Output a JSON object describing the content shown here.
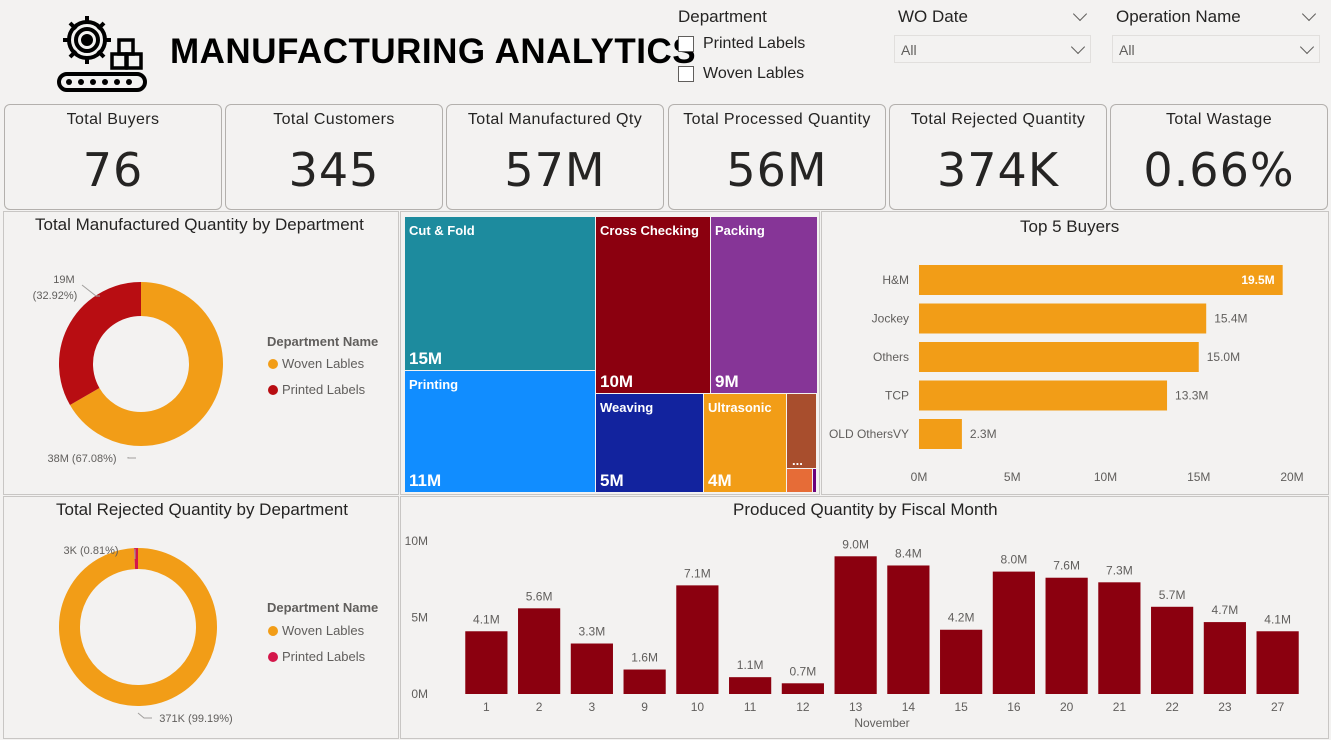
{
  "header": {
    "title": "MANUFACTURING ANALYTICS",
    "logo_icon": "gear-conveyor-icon"
  },
  "slicers": {
    "department": {
      "title": "Department",
      "options": [
        {
          "label": "Printed Labels",
          "checked": false
        },
        {
          "label": "Woven Lables",
          "checked": false
        }
      ]
    },
    "wo_date": {
      "title": "WO Date",
      "value": "All"
    },
    "operation_name": {
      "title": "Operation Name",
      "value": "All"
    }
  },
  "kpis": [
    {
      "label": "Total Buyers",
      "value": "76"
    },
    {
      "label": "Total Customers",
      "value": "345"
    },
    {
      "label": "Total Manufactured Qty",
      "value": "57M"
    },
    {
      "label": "Total Processed Quantity",
      "value": "56M"
    },
    {
      "label": "Total Rejected Quantity",
      "value": "374K"
    },
    {
      "label": "Total Wastage",
      "value": "0.66%"
    }
  ],
  "chart_data": [
    {
      "type": "pie",
      "variant": "donut",
      "title": "Total Manufactured Quantity by Department",
      "legend_title": "Department Name",
      "slices": [
        {
          "name": "Woven Lables",
          "value": 38,
          "unit": "M",
          "label": "38M (67.08%)",
          "color": "#f29d17"
        },
        {
          "name": "Printed Labels",
          "value": 19,
          "unit": "M",
          "label": "19M (32.92%)",
          "color": "#b80d12"
        }
      ]
    },
    {
      "type": "treemap",
      "title": "",
      "cells": [
        {
          "name": "Cut & Fold",
          "label": "15M",
          "value": 15,
          "color": "#1d8b9e"
        },
        {
          "name": "Printing",
          "label": "11M",
          "value": 11,
          "color": "#118dff"
        },
        {
          "name": "Cross Checking",
          "label": "10M",
          "value": 10,
          "color": "#8b000f"
        },
        {
          "name": "Packing",
          "label": "9M",
          "value": 9,
          "color": "#863597"
        },
        {
          "name": "Weaving",
          "label": "5M",
          "value": 5,
          "color": "#12239e"
        },
        {
          "name": "Ultrasonic",
          "label": "4M",
          "value": 4,
          "color": "#f29d17"
        },
        {
          "name": "...",
          "label": "",
          "value": 1.5,
          "color": "#a84e2d"
        },
        {
          "name": "",
          "label": "",
          "value": 0.5,
          "color": "#e66c37"
        }
      ]
    },
    {
      "type": "bar",
      "orientation": "horizontal",
      "title": "Top 5 Buyers",
      "categories": [
        "H&M",
        "Jockey",
        "Others",
        "TCP",
        "OLD OthersVY"
      ],
      "values": [
        19.5,
        15.4,
        15.0,
        13.3,
        2.3
      ],
      "data_labels": [
        "19.5M",
        "15.4M",
        "15.0M",
        "13.3M",
        "2.3M"
      ],
      "xlim": [
        0,
        20
      ],
      "xticks": [
        "0M",
        "5M",
        "10M",
        "15M",
        "20M"
      ],
      "color": "#f29d17"
    },
    {
      "type": "pie",
      "variant": "donut",
      "title": "Total Rejected Quantity by Department",
      "legend_title": "Department Name",
      "slices": [
        {
          "name": "Woven Lables",
          "value": 371,
          "unit": "K",
          "label": "371K (99.19%)",
          "color": "#f29d17"
        },
        {
          "name": "Printed Labels",
          "value": 3,
          "unit": "K",
          "label": "3K (0.81%)",
          "color": "#d4164a"
        }
      ]
    },
    {
      "type": "bar",
      "title": "Produced Quantity by Fiscal Month",
      "xlabel": "November",
      "categories": [
        "1",
        "2",
        "3",
        "9",
        "10",
        "11",
        "12",
        "13",
        "14",
        "15",
        "16",
        "20",
        "21",
        "22",
        "23",
        "27"
      ],
      "values": [
        4.1,
        5.6,
        3.3,
        1.6,
        7.1,
        1.1,
        0.7,
        9.0,
        8.4,
        4.2,
        8.0,
        7.6,
        7.3,
        5.7,
        4.7,
        4.1
      ],
      "data_labels": [
        "4.1M",
        "5.6M",
        "3.3M",
        "1.6M",
        "7.1M",
        "1.1M",
        "0.7M",
        "9.0M",
        "8.4M",
        "4.2M",
        "8.0M",
        "7.6M",
        "7.3M",
        "5.7M",
        "4.7M",
        "4.1M"
      ],
      "ylim": [
        0,
        10
      ],
      "yticks": [
        "0M",
        "5M",
        "10M"
      ],
      "color": "#8b000f"
    }
  ]
}
